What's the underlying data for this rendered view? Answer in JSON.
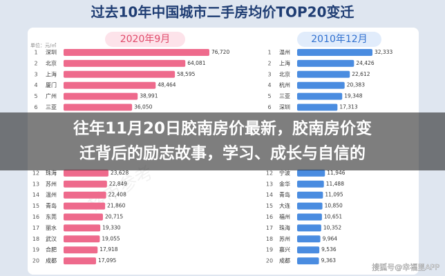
{
  "title": "过去10年中国城市二手房均价TOP20变迁",
  "banner": [
    "往年11月20日胶南房价最新，胶南房价变",
    "迁背后的励志故事，学习、成长与自信的"
  ],
  "watermarks": [
    "楼市参考",
    "搜狐号@幸福里APP"
  ],
  "chart_data": [
    {
      "type": "bar",
      "orientation": "horizontal",
      "title": "2020年9月",
      "subtitle": "单位：元/㎡",
      "color": "#ee6a8c",
      "ranks": [
        1,
        2,
        3,
        4,
        5,
        6,
        12,
        13,
        14,
        15,
        16,
        17,
        18,
        19,
        20
      ],
      "categories": [
        "深圳",
        "北京",
        "上海",
        "厦门",
        "广州",
        "三亚",
        "珠海",
        "苏州",
        "温州",
        "青岛",
        "东莞",
        "丽水",
        "武汉",
        "合肥",
        "成都"
      ],
      "values": [
        76720,
        64081,
        58595,
        48464,
        38991,
        36050,
        23628,
        22849,
        22408,
        21860,
        20715,
        19330,
        19055,
        17918,
        17095
      ],
      "value_labels": [
        "76,720",
        "64,081",
        "58,595",
        "48,464",
        "38,991",
        "36,050",
        "23,628",
        "22,849",
        "22,408",
        "21,860",
        "20,715",
        "19,330",
        "19,055",
        "17,918",
        "17,095"
      ],
      "xlim": [
        0,
        80000
      ]
    },
    {
      "type": "bar",
      "orientation": "horizontal",
      "title": "2010年12月",
      "color": "#4a8ce0",
      "ranks": [
        1,
        2,
        3,
        4,
        5,
        6,
        12,
        13,
        14,
        15,
        16,
        17,
        18,
        19,
        20
      ],
      "categories": [
        "温州",
        "上海",
        "北京",
        "杭州",
        "三亚",
        "深圳",
        "宁波",
        "金华",
        "青岛",
        "大连",
        "福州",
        "珠海",
        "苏州",
        "嘉兴",
        "成都"
      ],
      "values": [
        32333,
        24426,
        22612,
        20383,
        19348,
        17313,
        11946,
        11488,
        11095,
        10850,
        10651,
        10352,
        9964,
        9536,
        9363
      ],
      "value_labels": [
        "32,333",
        "24,426",
        "22,612",
        "20,383",
        "19,348",
        "17,313",
        "11,946",
        "11,488",
        "11,095",
        "10,850",
        "10,651",
        "10,352",
        "9,964",
        "9,536",
        "9,363"
      ],
      "xlim": [
        0,
        35000
      ]
    }
  ]
}
